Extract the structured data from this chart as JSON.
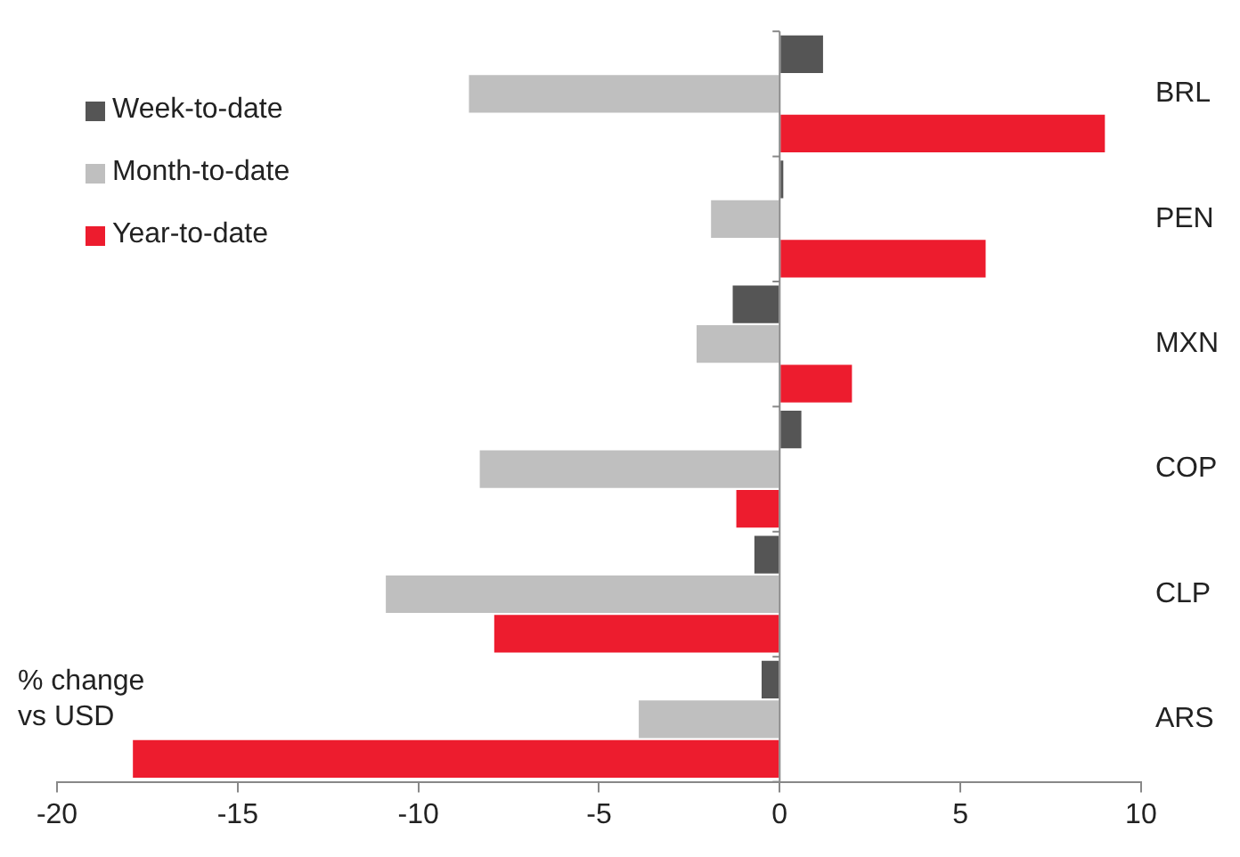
{
  "chart_data": {
    "type": "bar",
    "orientation": "horizontal",
    "categories": [
      "BRL",
      "PEN",
      "MXN",
      "COP",
      "CLP",
      "ARS"
    ],
    "series": [
      {
        "name": "Week-to-date",
        "color": "#555555",
        "values": [
          1.2,
          0.1,
          -1.3,
          0.6,
          -0.7,
          -0.5
        ]
      },
      {
        "name": "Month-to-date",
        "color": "#bfbfbf",
        "values": [
          -8.6,
          -1.9,
          -2.3,
          -8.3,
          -10.9,
          -3.9
        ]
      },
      {
        "name": "Year-to-date",
        "color": "#ed1c2e",
        "values": [
          9.0,
          5.7,
          2.0,
          -1.2,
          -7.9,
          -17.9
        ]
      }
    ],
    "xlim": [
      -20,
      10
    ],
    "xticks": [
      -20,
      -15,
      -10,
      -5,
      0,
      5,
      10
    ],
    "legend": "top left",
    "annotations": [
      "% change\nvs USD"
    ]
  }
}
